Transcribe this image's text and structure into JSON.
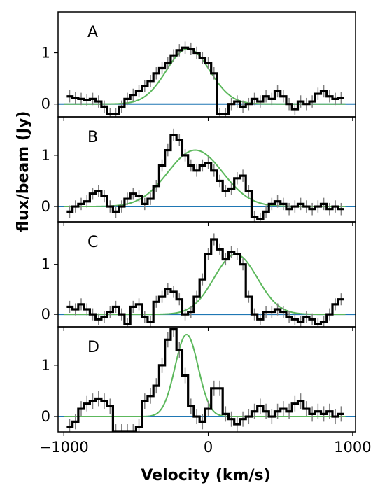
{
  "chart_data": {
    "type": "line",
    "xlabel": "Velocity (km/s)",
    "ylabel": "flux/beam (Jy)",
    "xlim": [
      -1040,
      1020
    ],
    "x_ticks": [
      -1000,
      0,
      1000
    ],
    "x_tick_labels": [
      "−1000",
      "0",
      "1000"
    ],
    "y_ticks": [
      0,
      1
    ],
    "grid": false,
    "colors": {
      "data": "#000000",
      "errorbar": "#808080",
      "fit": "#5cb85c",
      "baseline": "#1f77b4"
    },
    "panels": [
      {
        "label": "A",
        "ylim": [
          -0.25,
          1.8
        ],
        "data": {
          "v": [
            -960,
            -920,
            -880,
            -840,
            -800,
            -760,
            -720,
            -680,
            -640,
            -600,
            -560,
            -520,
            -480,
            -440,
            -400,
            -360,
            -320,
            -280,
            -240,
            -200,
            -160,
            -120,
            -80,
            -40,
            0,
            40,
            80,
            120,
            160,
            200,
            240,
            280,
            320,
            360,
            400,
            440,
            480,
            520,
            560,
            600,
            640,
            680,
            720,
            760,
            800,
            840,
            880,
            920
          ],
          "flux": [
            0.15,
            0.12,
            0.1,
            0.08,
            0.1,
            0.05,
            -0.05,
            -0.2,
            -0.2,
            -0.05,
            0.1,
            0.18,
            0.25,
            0.35,
            0.45,
            0.6,
            0.7,
            0.8,
            0.95,
            1.05,
            1.1,
            1.08,
            1.0,
            0.9,
            0.8,
            0.6,
            -0.2,
            -0.2,
            0.0,
            0.05,
            -0.05,
            0.0,
            0.1,
            0.05,
            0.15,
            0.1,
            0.25,
            0.15,
            0.0,
            -0.1,
            0.05,
            0.0,
            0.05,
            0.2,
            0.25,
            0.15,
            0.1,
            0.12
          ],
          "err": 0.12
        },
        "fit": {
          "amp": 1.08,
          "mu": -140,
          "sigma": 150
        }
      },
      {
        "label": "B",
        "ylim": [
          -0.3,
          1.75
        ],
        "data": {
          "v": [
            -960,
            -920,
            -880,
            -840,
            -800,
            -760,
            -720,
            -680,
            -640,
            -600,
            -560,
            -520,
            -480,
            -440,
            -400,
            -360,
            -320,
            -280,
            -240,
            -200,
            -160,
            -120,
            -80,
            -40,
            0,
            40,
            80,
            120,
            160,
            200,
            240,
            280,
            320,
            360,
            400,
            440,
            480,
            520,
            560,
            600,
            640,
            680,
            720,
            760,
            800,
            840,
            880,
            920
          ],
          "flux": [
            -0.1,
            0.0,
            0.05,
            0.1,
            0.25,
            0.3,
            0.2,
            0.0,
            -0.1,
            0.0,
            0.15,
            0.25,
            0.2,
            0.05,
            0.15,
            0.4,
            0.8,
            1.1,
            1.4,
            1.3,
            1.0,
            0.8,
            0.7,
            0.8,
            0.85,
            0.7,
            0.5,
            0.3,
            0.35,
            0.55,
            0.6,
            0.3,
            -0.2,
            -0.25,
            -0.1,
            0.05,
            0.1,
            0.05,
            -0.05,
            0.0,
            0.05,
            0.0,
            -0.05,
            0.0,
            0.05,
            -0.05,
            0.0,
            -0.05
          ],
          "err": 0.12
        },
        "fit": {
          "amp": 1.1,
          "mu": -90,
          "sigma": 190
        }
      },
      {
        "label": "C",
        "ylim": [
          -0.25,
          1.85
        ],
        "data": {
          "v": [
            -960,
            -920,
            -880,
            -840,
            -800,
            -760,
            -720,
            -680,
            -640,
            -600,
            -560,
            -520,
            -480,
            -440,
            -400,
            -360,
            -320,
            -280,
            -240,
            -200,
            -160,
            -120,
            -80,
            -40,
            0,
            40,
            80,
            120,
            160,
            200,
            240,
            280,
            320,
            360,
            400,
            440,
            480,
            520,
            560,
            600,
            640,
            680,
            720,
            760,
            800,
            840,
            880,
            920
          ],
          "flux": [
            0.15,
            0.1,
            0.2,
            0.1,
            0.0,
            -0.1,
            -0.05,
            0.05,
            0.15,
            0.0,
            -0.2,
            0.15,
            0.2,
            -0.05,
            -0.15,
            0.25,
            0.35,
            0.5,
            0.45,
            0.3,
            0.0,
            0.05,
            0.35,
            0.7,
            1.2,
            1.5,
            1.3,
            1.1,
            1.25,
            1.2,
            1.0,
            0.35,
            0.0,
            -0.1,
            0.05,
            0.05,
            0.1,
            0.05,
            -0.05,
            -0.1,
            -0.15,
            -0.05,
            -0.1,
            -0.2,
            -0.15,
            0.0,
            0.2,
            0.3
          ],
          "err": 0.12
        },
        "fit": {
          "amp": 1.2,
          "mu": 190,
          "sigma": 150
        }
      },
      {
        "label": "D",
        "ylim": [
          -0.3,
          1.75
        ],
        "data": {
          "v": [
            -960,
            -920,
            -880,
            -840,
            -800,
            -760,
            -720,
            -680,
            -640,
            -600,
            -560,
            -520,
            -480,
            -440,
            -400,
            -360,
            -320,
            -280,
            -240,
            -200,
            -160,
            -120,
            -80,
            -40,
            0,
            40,
            80,
            120,
            160,
            200,
            240,
            280,
            320,
            360,
            400,
            440,
            480,
            520,
            560,
            600,
            640,
            680,
            720,
            760,
            800,
            840,
            880,
            920
          ],
          "flux": [
            -0.2,
            -0.1,
            0.15,
            0.25,
            0.3,
            0.35,
            0.3,
            0.2,
            -0.3,
            -0.3,
            -0.3,
            -0.3,
            -0.2,
            0.3,
            0.4,
            0.6,
            1.0,
            1.5,
            1.7,
            1.3,
            0.8,
            0.2,
            0.0,
            -0.1,
            0.15,
            0.55,
            0.55,
            0.05,
            -0.05,
            -0.15,
            -0.05,
            0.0,
            0.1,
            0.2,
            0.1,
            0.0,
            0.1,
            0.15,
            0.1,
            0.25,
            0.3,
            0.15,
            0.05,
            0.1,
            0.05,
            0.1,
            0.0,
            0.05
          ],
          "err": 0.15
        },
        "fit": {
          "amp": 1.6,
          "mu": -150,
          "sigma": 80
        }
      }
    ]
  }
}
